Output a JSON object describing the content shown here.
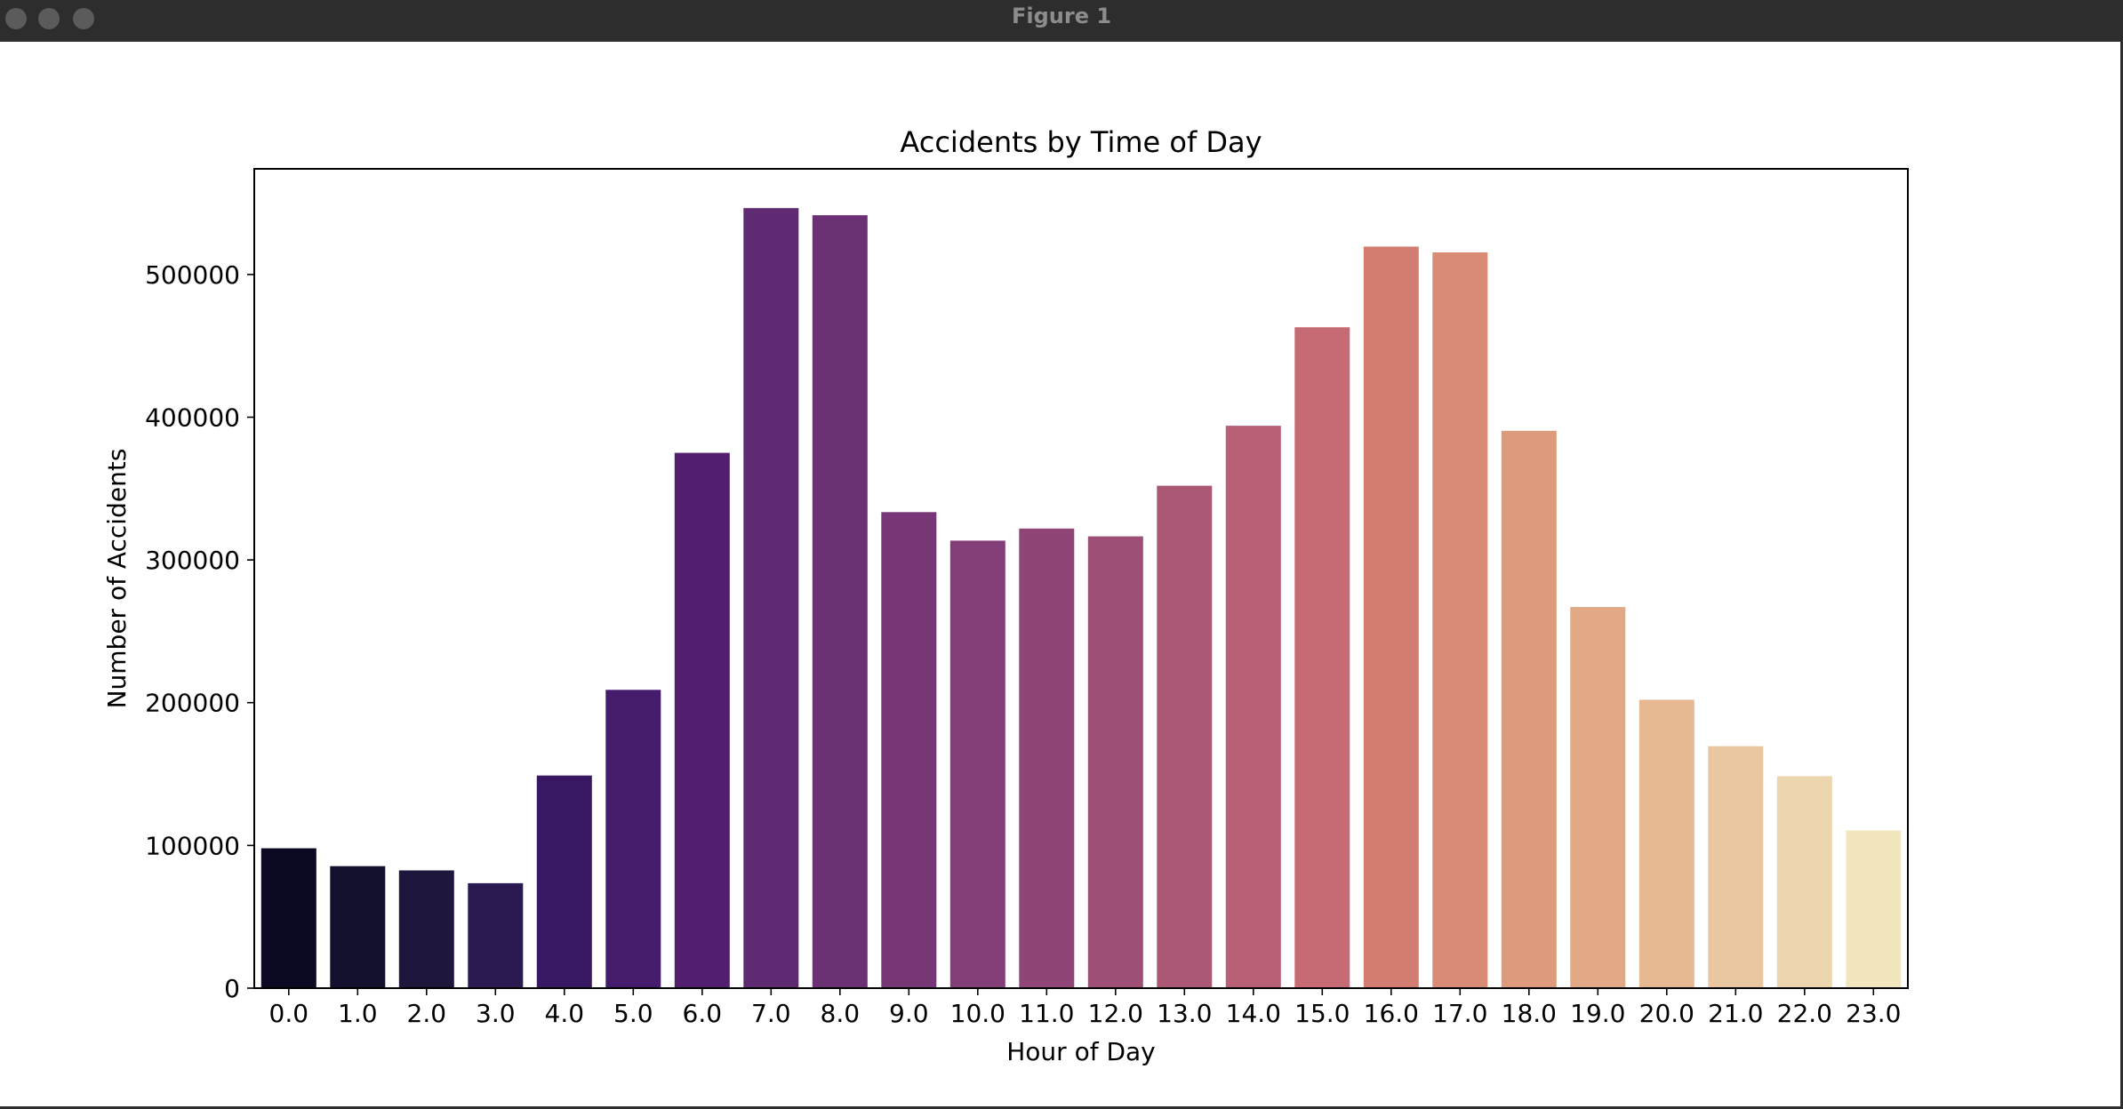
{
  "window": {
    "title": "Figure 1"
  },
  "chart_data": {
    "type": "bar",
    "title": "Accidents by Time of Day",
    "xlabel": "Hour of Day",
    "ylabel": "Number of Accidents",
    "categories": [
      "0.0",
      "1.0",
      "2.0",
      "3.0",
      "4.0",
      "5.0",
      "6.0",
      "7.0",
      "8.0",
      "9.0",
      "10.0",
      "11.0",
      "12.0",
      "13.0",
      "14.0",
      "15.0",
      "16.0",
      "17.0",
      "18.0",
      "19.0",
      "20.0",
      "21.0",
      "22.0",
      "23.0"
    ],
    "values": [
      98000,
      85500,
      82500,
      73500,
      149000,
      209000,
      375000,
      546500,
      541500,
      333500,
      313500,
      322000,
      316500,
      352000,
      394000,
      463000,
      519500,
      515500,
      390500,
      267000,
      202000,
      169500,
      148500,
      110500
    ],
    "colors": [
      "#0a0822",
      "#14112f",
      "#1f163e",
      "#2b1a52",
      "#381961",
      "#451c6c",
      "#521f6f",
      "#5e2a72",
      "#6b3174",
      "#773776",
      "#833d77",
      "#8f4677",
      "#9d4f76",
      "#ab5776",
      "#b86075",
      "#c66a74",
      "#d27c72",
      "#d98b75",
      "#de9a7d",
      "#e2a986",
      "#e6b992",
      "#eac7a0",
      "#edd5ae",
      "#f2e6bf"
    ],
    "ylim": [
      0,
      574000
    ],
    "yticks": [
      0,
      100000,
      200000,
      300000,
      400000,
      500000
    ],
    "grid": false,
    "legend": "none"
  }
}
